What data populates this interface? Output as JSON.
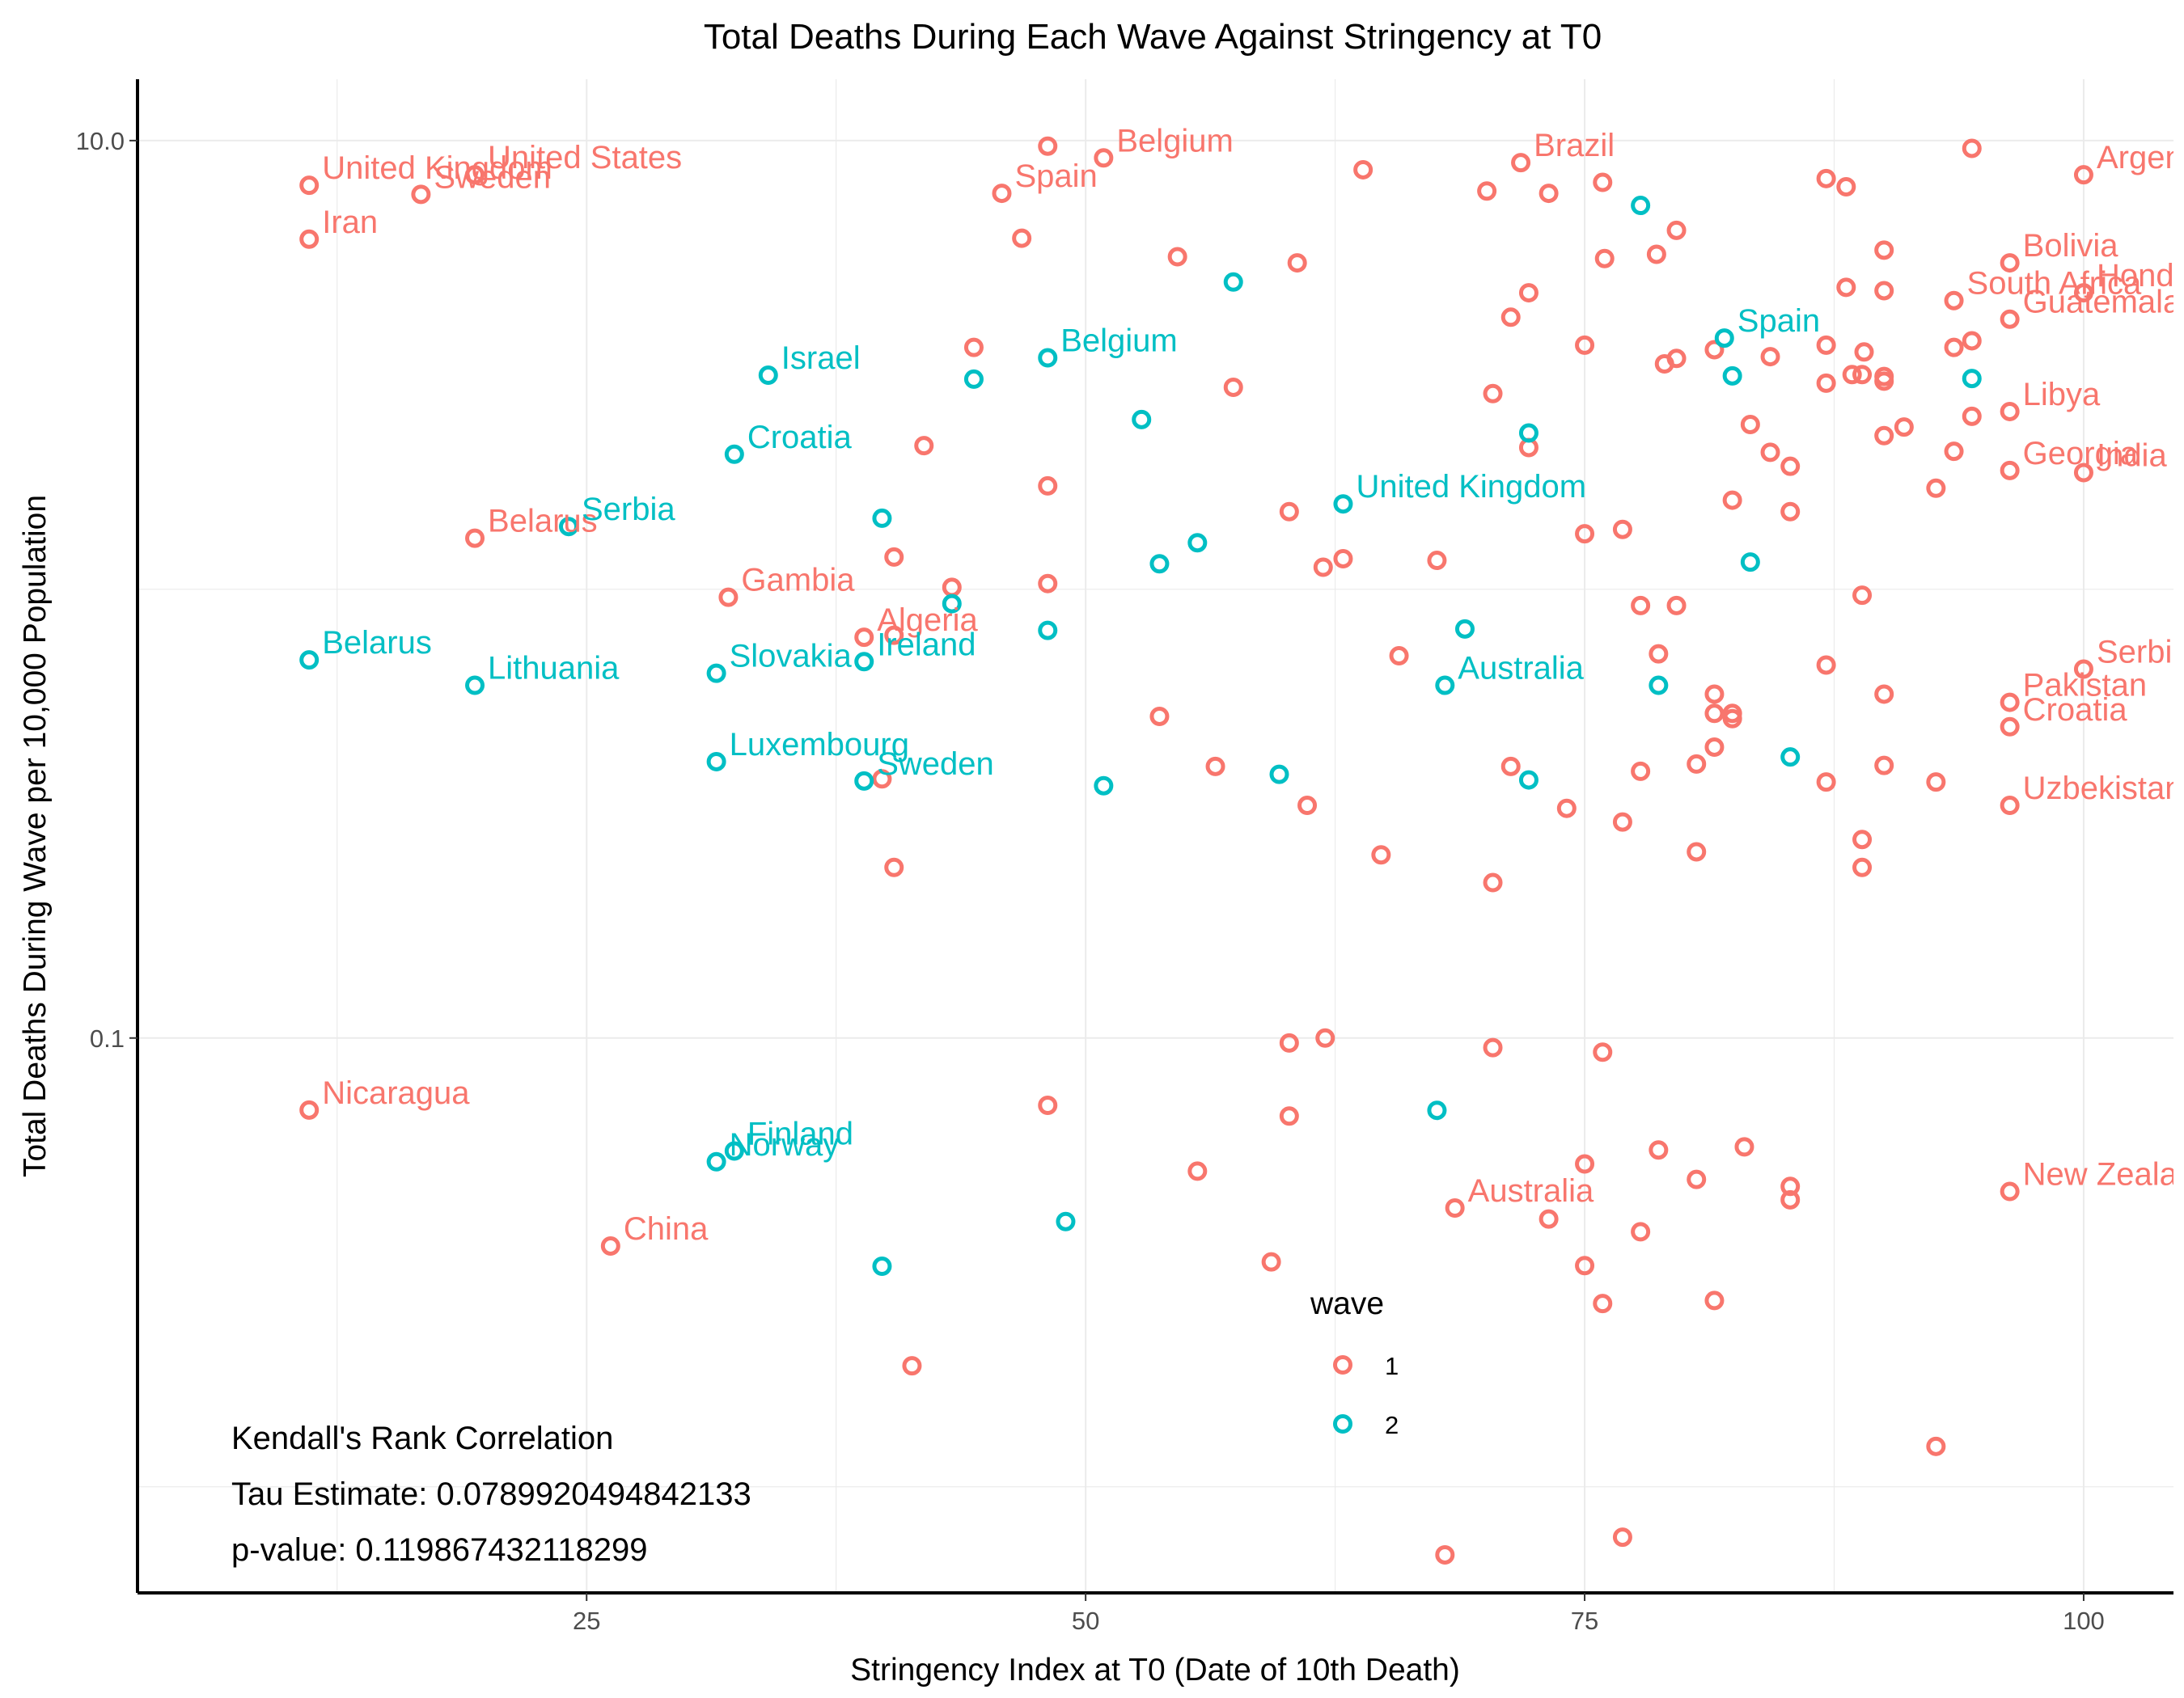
{
  "chart_data": {
    "type": "scatter",
    "title": "Total Deaths During Each Wave Against Stringency at T0",
    "xlabel": "Stringency Index at T0 (Date of 10th Death)",
    "ylabel": "Total Deaths During Wave per 10,000 Population",
    "xlim": [
      2.5,
      104.5
    ],
    "x_ticks": [
      25,
      50,
      75,
      100
    ],
    "x_tick_labels": [
      "25",
      "50",
      "75",
      "100"
    ],
    "y_scale": "log10",
    "ylim": [
      0.0058,
      13.7
    ],
    "y_ticks": [
      0.1,
      10
    ],
    "y_tick_labels": [
      "0.1",
      "10.0"
    ],
    "grid": true,
    "legend": {
      "title": "wave",
      "placement": "inside-bottom-center"
    },
    "annotation": [
      "Kendall's Rank Correlation",
      "Tau Estimate: 0.0789920494842133",
      "p-value: 0.119867432118299"
    ],
    "series": [
      {
        "name": "1",
        "color": "#F8766D",
        "points": [
          {
            "x": 11.1,
            "y": 7.95,
            "label": "United Kingdom"
          },
          {
            "x": 19.4,
            "y": 8.39,
            "label": "United States"
          },
          {
            "x": 16.7,
            "y": 7.59,
            "label": "Sweden"
          },
          {
            "x": 11.1,
            "y": 6.03,
            "label": "Iran"
          },
          {
            "x": 48.1,
            "y": 9.72
          },
          {
            "x": 50.9,
            "y": 9.15,
            "label": "Belgium"
          },
          {
            "x": 45.8,
            "y": 7.63,
            "label": "Spain"
          },
          {
            "x": 46.8,
            "y": 6.06
          },
          {
            "x": 63.9,
            "y": 8.61
          },
          {
            "x": 71.8,
            "y": 8.93,
            "label": "Brazil"
          },
          {
            "x": 75.9,
            "y": 8.07
          },
          {
            "x": 70.1,
            "y": 7.72
          },
          {
            "x": 73.2,
            "y": 7.63
          },
          {
            "x": 79.6,
            "y": 6.31
          },
          {
            "x": 87.1,
            "y": 8.23
          },
          {
            "x": 88.1,
            "y": 7.89
          },
          {
            "x": 100.0,
            "y": 8.39,
            "label": "Argentina"
          },
          {
            "x": 94.4,
            "y": 9.61
          },
          {
            "x": 54.6,
            "y": 5.51
          },
          {
            "x": 60.6,
            "y": 5.34
          },
          {
            "x": 76.0,
            "y": 5.46
          },
          {
            "x": 78.6,
            "y": 5.58
          },
          {
            "x": 90.0,
            "y": 5.7
          },
          {
            "x": 96.3,
            "y": 5.34,
            "label": "Bolivia"
          },
          {
            "x": 88.1,
            "y": 4.71
          },
          {
            "x": 90.0,
            "y": 4.63
          },
          {
            "x": 100.0,
            "y": 4.58,
            "label": "Honduras"
          },
          {
            "x": 72.2,
            "y": 4.58
          },
          {
            "x": 93.5,
            "y": 4.4,
            "label": "South Africa"
          },
          {
            "x": 71.3,
            "y": 4.04
          },
          {
            "x": 96.3,
            "y": 4.0,
            "label": "Guatemala"
          },
          {
            "x": 44.4,
            "y": 3.46
          },
          {
            "x": 75.0,
            "y": 3.5
          },
          {
            "x": 81.5,
            "y": 3.42
          },
          {
            "x": 87.1,
            "y": 3.5
          },
          {
            "x": 89.0,
            "y": 3.38
          },
          {
            "x": 93.5,
            "y": 3.46
          },
          {
            "x": 94.4,
            "y": 3.58
          },
          {
            "x": 79.6,
            "y": 3.27
          },
          {
            "x": 79.0,
            "y": 3.18
          },
          {
            "x": 84.3,
            "y": 3.3
          },
          {
            "x": 88.4,
            "y": 3.01
          },
          {
            "x": 88.9,
            "y": 3.01
          },
          {
            "x": 90.0,
            "y": 2.98
          },
          {
            "x": 90.0,
            "y": 2.91
          },
          {
            "x": 87.1,
            "y": 2.88
          },
          {
            "x": 57.4,
            "y": 2.82
          },
          {
            "x": 70.4,
            "y": 2.73
          },
          {
            "x": 96.3,
            "y": 2.49,
            "label": "Libya"
          },
          {
            "x": 94.4,
            "y": 2.43
          },
          {
            "x": 83.3,
            "y": 2.33
          },
          {
            "x": 91.0,
            "y": 2.3
          },
          {
            "x": 90.0,
            "y": 2.2
          },
          {
            "x": 41.9,
            "y": 2.09
          },
          {
            "x": 72.2,
            "y": 2.07
          },
          {
            "x": 84.3,
            "y": 2.02
          },
          {
            "x": 93.5,
            "y": 2.03
          },
          {
            "x": 85.3,
            "y": 1.88
          },
          {
            "x": 96.3,
            "y": 1.84,
            "label": "Georgia"
          },
          {
            "x": 100.0,
            "y": 1.82,
            "label": "India"
          },
          {
            "x": 48.1,
            "y": 1.7
          },
          {
            "x": 92.6,
            "y": 1.68
          },
          {
            "x": 82.4,
            "y": 1.58
          },
          {
            "x": 60.2,
            "y": 1.49
          },
          {
            "x": 85.3,
            "y": 1.49
          },
          {
            "x": 76.9,
            "y": 1.36
          },
          {
            "x": 75.0,
            "y": 1.33
          },
          {
            "x": 19.4,
            "y": 1.3,
            "label": "Belarus"
          },
          {
            "x": 40.4,
            "y": 1.18
          },
          {
            "x": 62.9,
            "y": 1.17
          },
          {
            "x": 67.6,
            "y": 1.16
          },
          {
            "x": 61.9,
            "y": 1.12
          },
          {
            "x": 48.1,
            "y": 1.03
          },
          {
            "x": 43.3,
            "y": 1.01
          },
          {
            "x": 32.1,
            "y": 0.96,
            "label": "Gambia"
          },
          {
            "x": 88.9,
            "y": 0.97
          },
          {
            "x": 77.8,
            "y": 0.92
          },
          {
            "x": 79.6,
            "y": 0.92
          },
          {
            "x": 38.9,
            "y": 0.782,
            "label": "Algeria"
          },
          {
            "x": 40.4,
            "y": 0.79
          },
          {
            "x": 65.7,
            "y": 0.711
          },
          {
            "x": 78.7,
            "y": 0.718
          },
          {
            "x": 87.1,
            "y": 0.678
          },
          {
            "x": 100.0,
            "y": 0.664,
            "label": "Serbia"
          },
          {
            "x": 81.5,
            "y": 0.584
          },
          {
            "x": 90.0,
            "y": 0.584
          },
          {
            "x": 96.3,
            "y": 0.56,
            "label": "Pakistan"
          },
          {
            "x": 81.5,
            "y": 0.529
          },
          {
            "x": 82.4,
            "y": 0.529
          },
          {
            "x": 82.4,
            "y": 0.515
          },
          {
            "x": 53.7,
            "y": 0.521
          },
          {
            "x": 96.3,
            "y": 0.494,
            "label": "Croatia"
          },
          {
            "x": 81.5,
            "y": 0.445
          },
          {
            "x": 71.3,
            "y": 0.403
          },
          {
            "x": 56.5,
            "y": 0.403
          },
          {
            "x": 80.6,
            "y": 0.408
          },
          {
            "x": 90.0,
            "y": 0.405
          },
          {
            "x": 77.8,
            "y": 0.393
          },
          {
            "x": 92.6,
            "y": 0.372
          },
          {
            "x": 87.1,
            "y": 0.372
          },
          {
            "x": 39.8,
            "y": 0.378
          },
          {
            "x": 61.1,
            "y": 0.33
          },
          {
            "x": 74.1,
            "y": 0.325
          },
          {
            "x": 96.3,
            "y": 0.33,
            "label": "Uzbekistan"
          },
          {
            "x": 76.9,
            "y": 0.303
          },
          {
            "x": 88.9,
            "y": 0.277
          },
          {
            "x": 64.8,
            "y": 0.256
          },
          {
            "x": 80.6,
            "y": 0.26
          },
          {
            "x": 40.4,
            "y": 0.24
          },
          {
            "x": 88.9,
            "y": 0.24
          },
          {
            "x": 70.4,
            "y": 0.222
          },
          {
            "x": 62.0,
            "y": 0.1
          },
          {
            "x": 60.2,
            "y": 0.0975
          },
          {
            "x": 70.4,
            "y": 0.0952
          },
          {
            "x": 75.9,
            "y": 0.093
          },
          {
            "x": 11.1,
            "y": 0.0691,
            "label": "Nicaragua"
          },
          {
            "x": 48.1,
            "y": 0.0708
          },
          {
            "x": 60.2,
            "y": 0.067
          },
          {
            "x": 78.7,
            "y": 0.0563
          },
          {
            "x": 83.0,
            "y": 0.0572
          },
          {
            "x": 75.0,
            "y": 0.0524
          },
          {
            "x": 55.6,
            "y": 0.0505
          },
          {
            "x": 80.6,
            "y": 0.0484
          },
          {
            "x": 85.3,
            "y": 0.0467
          },
          {
            "x": 96.3,
            "y": 0.0455,
            "label": "New Zealand"
          },
          {
            "x": 85.3,
            "y": 0.0436
          },
          {
            "x": 68.5,
            "y": 0.0418,
            "label": "Australia"
          },
          {
            "x": 73.2,
            "y": 0.0395
          },
          {
            "x": 77.8,
            "y": 0.037
          },
          {
            "x": 26.2,
            "y": 0.0344,
            "label": "China"
          },
          {
            "x": 59.3,
            "y": 0.0317
          },
          {
            "x": 75.0,
            "y": 0.0311
          },
          {
            "x": 75.9,
            "y": 0.0256
          },
          {
            "x": 81.5,
            "y": 0.026
          },
          {
            "x": 41.3,
            "y": 0.0186
          },
          {
            "x": 92.6,
            "y": 0.0123
          },
          {
            "x": 76.9,
            "y": 0.00772
          },
          {
            "x": 68.0,
            "y": 0.00705
          },
          {
            "x": 83.3,
            "y": 0.00545
          }
        ]
      },
      {
        "name": "2",
        "color": "#00BFC4",
        "points": [
          {
            "x": 77.8,
            "y": 7.17
          },
          {
            "x": 57.4,
            "y": 4.84
          },
          {
            "x": 82.0,
            "y": 3.63,
            "label": "Spain"
          },
          {
            "x": 34.1,
            "y": 3.0,
            "label": "Israel"
          },
          {
            "x": 48.1,
            "y": 3.28,
            "label": "Belgium"
          },
          {
            "x": 44.4,
            "y": 2.94
          },
          {
            "x": 82.4,
            "y": 2.99
          },
          {
            "x": 94.4,
            "y": 2.95
          },
          {
            "x": 52.8,
            "y": 2.39
          },
          {
            "x": 72.2,
            "y": 2.23
          },
          {
            "x": 32.4,
            "y": 2.0,
            "label": "Croatia"
          },
          {
            "x": 62.9,
            "y": 1.55,
            "label": "United Kingdom"
          },
          {
            "x": 39.8,
            "y": 1.44
          },
          {
            "x": 24.1,
            "y": 1.38,
            "label": "Serbia"
          },
          {
            "x": 55.6,
            "y": 1.27
          },
          {
            "x": 53.7,
            "y": 1.14
          },
          {
            "x": 83.3,
            "y": 1.15
          },
          {
            "x": 43.3,
            "y": 0.929
          },
          {
            "x": 69.0,
            "y": 0.816
          },
          {
            "x": 48.1,
            "y": 0.81
          },
          {
            "x": 11.1,
            "y": 0.696,
            "label": "Belarus"
          },
          {
            "x": 38.9,
            "y": 0.69,
            "label": "Ireland"
          },
          {
            "x": 31.5,
            "y": 0.65,
            "label": "Slovakia"
          },
          {
            "x": 19.4,
            "y": 0.611,
            "label": "Lithuania"
          },
          {
            "x": 68.0,
            "y": 0.611,
            "label": "Australia"
          },
          {
            "x": 78.7,
            "y": 0.611
          },
          {
            "x": 31.5,
            "y": 0.413,
            "label": "Luxembourg"
          },
          {
            "x": 85.3,
            "y": 0.423
          },
          {
            "x": 59.7,
            "y": 0.387
          },
          {
            "x": 38.9,
            "y": 0.374,
            "label": "Sweden"
          },
          {
            "x": 50.9,
            "y": 0.365
          },
          {
            "x": 72.2,
            "y": 0.376
          },
          {
            "x": 67.6,
            "y": 0.069
          },
          {
            "x": 32.4,
            "y": 0.056,
            "label": "Finland"
          },
          {
            "x": 31.5,
            "y": 0.053,
            "label": "Norway"
          },
          {
            "x": 49.0,
            "y": 0.039
          },
          {
            "x": 39.8,
            "y": 0.031
          }
        ]
      }
    ]
  }
}
